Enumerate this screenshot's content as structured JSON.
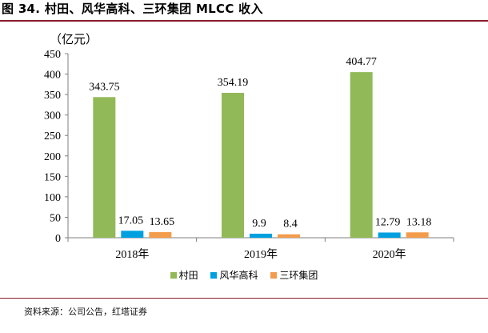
{
  "figure": {
    "title": "图 34. 村田、风华高科、三环集团 MLCC 收入",
    "unit": "（亿元）",
    "source": "资料来源：公司公告，红塔证券"
  },
  "colors": {
    "title_rule": "#8a1c2b",
    "murata": "#92b957",
    "fenghua": "#00a0e0",
    "sanhuan": "#f39c4c"
  },
  "chart_data": {
    "type": "bar",
    "title": "村田、风华高科、三环集团 MLCC 收入",
    "xlabel": "",
    "ylabel": "（亿元）",
    "ylim": [
      0,
      450
    ],
    "yticks": [
      0,
      50,
      100,
      150,
      200,
      250,
      300,
      350,
      400,
      450
    ],
    "categories": [
      "2018年",
      "2019年",
      "2020年"
    ],
    "series": [
      {
        "name": "村田",
        "values": [
          343.75,
          354.19,
          404.77
        ],
        "labels": [
          "343.75",
          "354.19",
          "404.77"
        ]
      },
      {
        "name": "风华高科",
        "values": [
          17.05,
          9.9,
          12.79
        ],
        "labels": [
          "17.05",
          "9.9",
          "12.79"
        ]
      },
      {
        "name": "三环集团",
        "values": [
          13.65,
          8.4,
          13.18
        ],
        "labels": [
          "13.65",
          "8.4",
          "13.18"
        ]
      }
    ],
    "legend_position": "bottom",
    "grid": false
  }
}
